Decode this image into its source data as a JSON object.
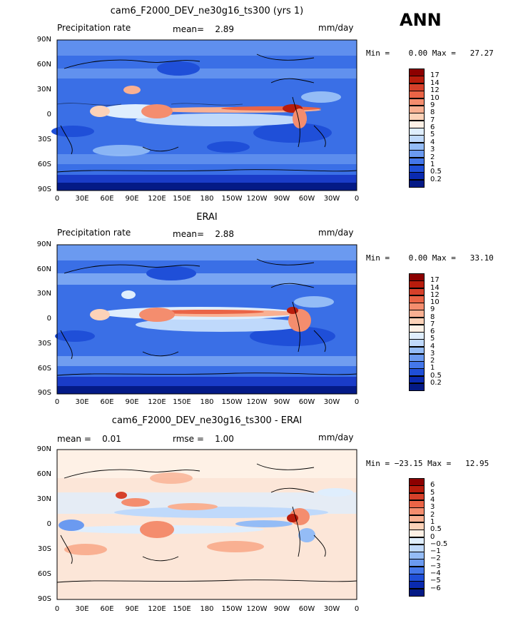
{
  "season": "ANN",
  "panels": [
    {
      "title": "cam6_F2000_DEV_ne30g16_ts300 (yrs 1)",
      "left_header": "Precipitation rate",
      "center_header": "mean=    2.89",
      "right_header": "mm/day",
      "stats": "Min =    0.00 Max =   27.27",
      "colorbar_labels": [
        "17",
        "14",
        "12",
        "10",
        "9",
        "8",
        "7",
        "6",
        "5",
        "4",
        "3",
        "2",
        "1",
        "0.5",
        "0.2"
      ],
      "colorbar_colors": [
        "#8c0000",
        "#b81c0c",
        "#d6402a",
        "#ea6446",
        "#f48d6e",
        "#f9b092",
        "#fcd2b8",
        "#fef1e6",
        "#dfeefd",
        "#bfd9fb",
        "#94bcf6",
        "#6b9af0",
        "#4477ea",
        "#1f4fd8",
        "#0a2ab0",
        "#041a86"
      ]
    },
    {
      "title": "ERAI",
      "left_header": "Precipitation rate",
      "center_header": "mean=    2.88",
      "right_header": "mm/day",
      "stats": "Min =    0.00 Max =   33.10",
      "colorbar_labels": [
        "17",
        "14",
        "12",
        "10",
        "9",
        "8",
        "7",
        "6",
        "5",
        "4",
        "3",
        "2",
        "1",
        "0.5",
        "0.2"
      ],
      "colorbar_colors": [
        "#8c0000",
        "#b81c0c",
        "#d6402a",
        "#ea6446",
        "#f48d6e",
        "#f9b092",
        "#fcd2b8",
        "#fef1e6",
        "#dfeefd",
        "#bfd9fb",
        "#94bcf6",
        "#6b9af0",
        "#4477ea",
        "#1f4fd8",
        "#0a2ab0",
        "#041a86"
      ]
    },
    {
      "title": "cam6_F2000_DEV_ne30g16_ts300 - ERAI",
      "left_header": "mean =    0.01",
      "center_header": "rmse =    1.00",
      "right_header": "mm/day",
      "stats": "Min = −23.15 Max =   12.95",
      "colorbar_labels": [
        "6",
        "5",
        "4",
        "3",
        "2",
        "1",
        "0.5",
        "0",
        "−0.5",
        "−1",
        "−2",
        "−3",
        "−4",
        "−5",
        "−6"
      ],
      "colorbar_colors": [
        "#8c0000",
        "#b81c0c",
        "#d6402a",
        "#ea6446",
        "#f48d6e",
        "#f9b092",
        "#fcd2b8",
        "#fef1e6",
        "#dfeefd",
        "#bfd9fb",
        "#94bcf6",
        "#6b9af0",
        "#4477ea",
        "#1f4fd8",
        "#0a2ab0",
        "#041a86"
      ]
    }
  ],
  "lat_ticks": [
    "90N",
    "60N",
    "30N",
    "0",
    "30S",
    "60S",
    "90S"
  ],
  "lon_ticks": [
    "0",
    "30E",
    "60E",
    "90E",
    "120E",
    "150E",
    "180",
    "150W",
    "120W",
    "90W",
    "60W",
    "30W",
    "0"
  ]
}
